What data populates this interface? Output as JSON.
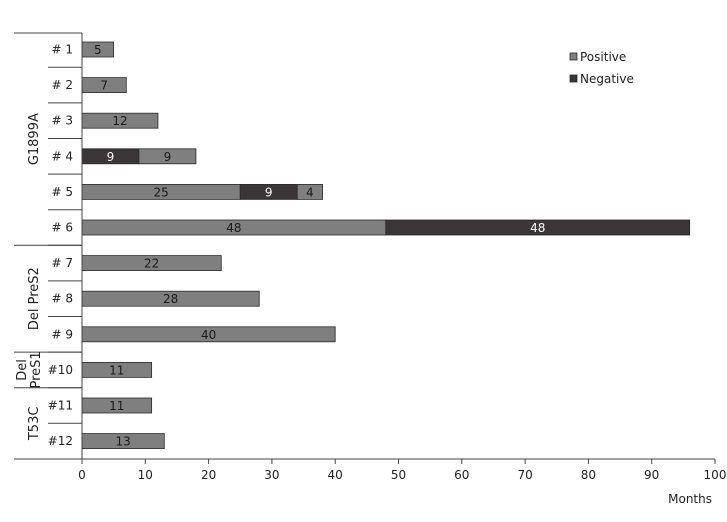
{
  "chart_data": {
    "type": "bar",
    "orientation": "horizontal",
    "stacked": true,
    "xlabel": "Months",
    "xlim": [
      0,
      100
    ],
    "xticks": [
      0,
      10,
      20,
      30,
      40,
      50,
      60,
      70,
      80,
      90,
      100
    ],
    "grid": false,
    "legend_position": "top-right",
    "colors": {
      "Positive": "#7f7f7f",
      "Negative": "#3a3536"
    },
    "legend": [
      "Positive",
      "Negative"
    ],
    "groups": [
      {
        "label": "G1899A",
        "rows": [
          0,
          5
        ]
      },
      {
        "label": "Del PreS2",
        "rows": [
          6,
          8
        ]
      },
      {
        "label": "Del PreS1",
        "lines": [
          "Del",
          "PreS1"
        ],
        "rows": [
          9,
          9
        ]
      },
      {
        "label": "T53C",
        "rows": [
          10,
          11
        ]
      }
    ],
    "rows": [
      {
        "label": "# 1",
        "segments": [
          {
            "series": "Positive",
            "value": 5
          }
        ]
      },
      {
        "label": "# 2",
        "segments": [
          {
            "series": "Positive",
            "value": 7
          }
        ]
      },
      {
        "label": "# 3",
        "segments": [
          {
            "series": "Positive",
            "value": 12
          }
        ]
      },
      {
        "label": "# 4",
        "segments": [
          {
            "series": "Negative",
            "value": 9
          },
          {
            "series": "Positive",
            "value": 9
          }
        ]
      },
      {
        "label": "# 5",
        "segments": [
          {
            "series": "Positive",
            "value": 25
          },
          {
            "series": "Negative",
            "value": 9
          },
          {
            "series": "Positive",
            "value": 4
          }
        ]
      },
      {
        "label": "# 6",
        "segments": [
          {
            "series": "Positive",
            "value": 48
          },
          {
            "series": "Negative",
            "value": 48
          }
        ]
      },
      {
        "label": "# 7",
        "segments": [
          {
            "series": "Positive",
            "value": 22
          }
        ]
      },
      {
        "label": "# 8",
        "segments": [
          {
            "series": "Positive",
            "value": 28
          }
        ]
      },
      {
        "label": "# 9",
        "segments": [
          {
            "series": "Positive",
            "value": 40
          }
        ]
      },
      {
        "label": "#10",
        "segments": [
          {
            "series": "Positive",
            "value": 11
          }
        ]
      },
      {
        "label": "#11",
        "segments": [
          {
            "series": "Positive",
            "value": 11
          }
        ]
      },
      {
        "label": "#12",
        "segments": [
          {
            "series": "Positive",
            "value": 13
          }
        ]
      }
    ]
  }
}
